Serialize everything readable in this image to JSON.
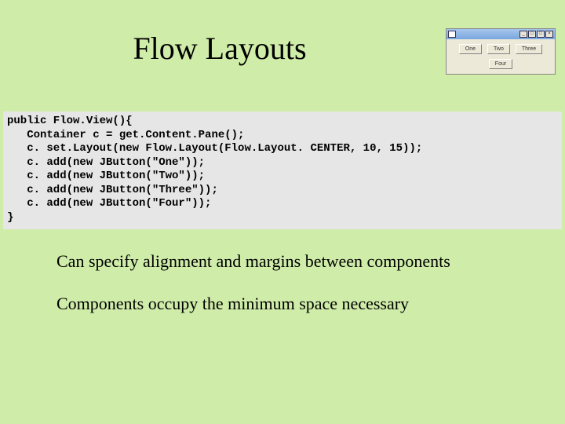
{
  "title": "Flow Layouts",
  "demo_window": {
    "panel_bg": "#ece9d8",
    "titlebar_gradient_top": "#a6c6ee",
    "titlebar_gradient_bottom": "#7aa6de",
    "window_controls": [
      "_",
      "□",
      "□",
      "×"
    ],
    "buttons": [
      "One",
      "Two",
      "Three",
      "Four"
    ],
    "button_font_size": 7
  },
  "code": {
    "indent1": "   ",
    "lines": [
      "public Flow.View(){",
      "   Container c = get.Content.Pane();",
      "   c. set.Layout(new Flow.Layout(Flow.Layout. CENTER, 10, 15));",
      "   c. add(new JButton(\"One\"));",
      "   c. add(new JButton(\"Two\"));",
      "   c. add(new JButton(\"Three\"));",
      "   c. add(new JButton(\"Four\"));",
      "}"
    ]
  },
  "notes": {
    "line1": "Can specify alignment and margins between components",
    "line2": "Components occupy the minimum space necessary"
  },
  "colors": {
    "page_bg": "#cfeca9",
    "code_bg": "#e6e6e6",
    "text": "#000000"
  }
}
